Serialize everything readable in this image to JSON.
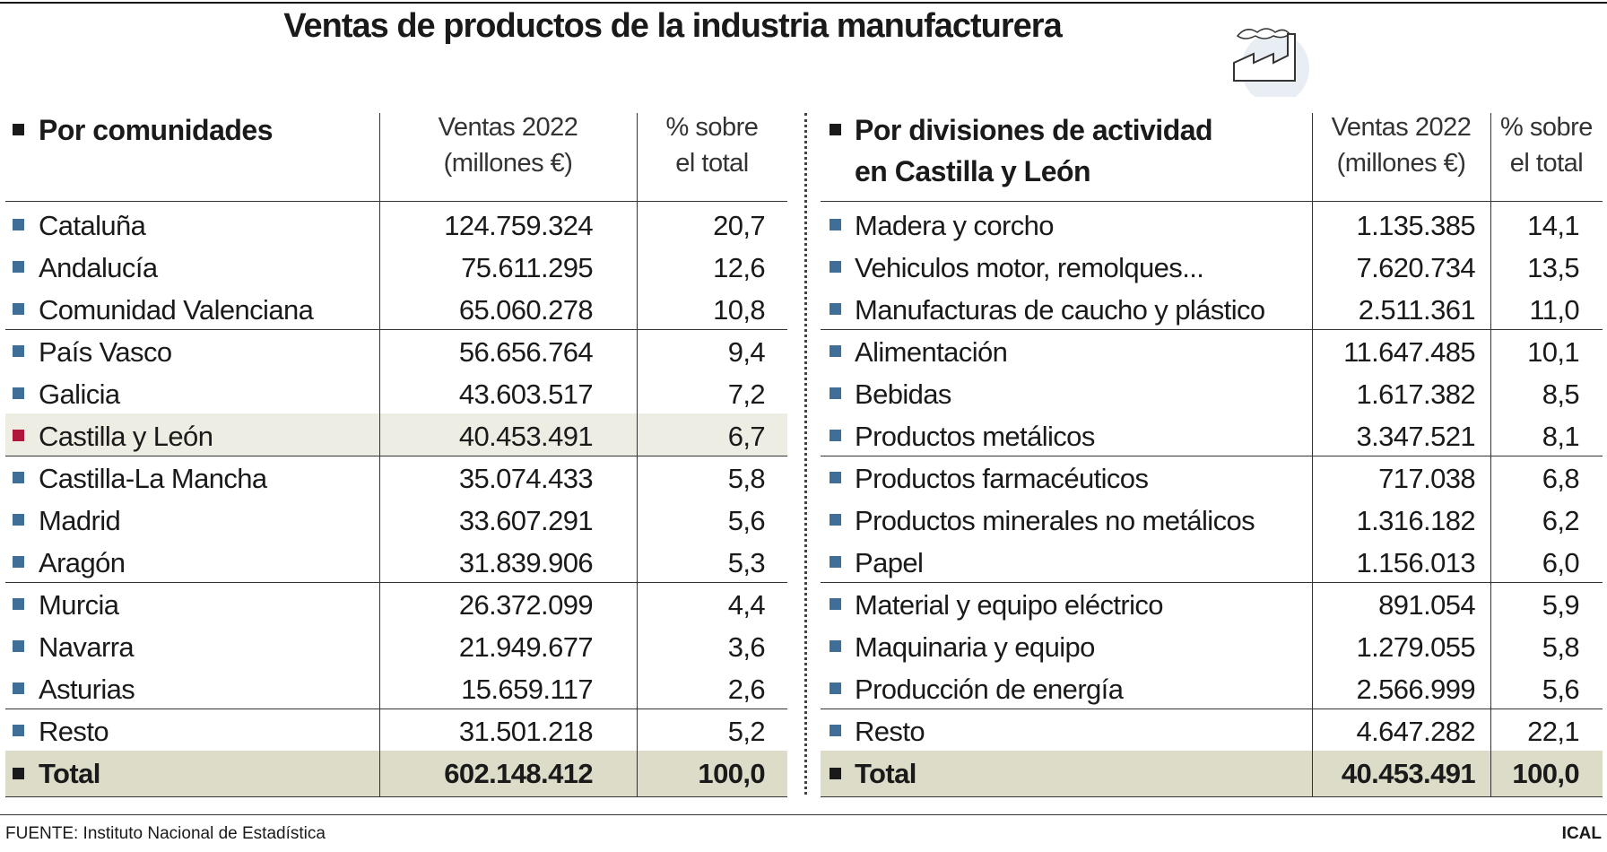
{
  "title": "Ventas de productos de la industria manufacturera",
  "tables": [
    {
      "header": [
        [
          "Por comunidades"
        ],
        [
          "Ventas 2022",
          "(millones €)"
        ],
        [
          "% sobre",
          "el total"
        ]
      ],
      "rows": [
        [
          "Cataluña",
          "124.759.324",
          "20,7"
        ],
        [
          "Andalucía",
          "75.611.295",
          "12,6"
        ],
        [
          "Comunidad Valenciana",
          "65.060.278",
          "10,8"
        ],
        [
          "País Vasco",
          "56.656.764",
          "9,4"
        ],
        [
          "Galicia",
          "43.603.517",
          "7,2"
        ],
        [
          "Castilla y León",
          "40.453.491",
          "6,7"
        ],
        [
          "Castilla-La Mancha",
          "35.074.433",
          "5,8"
        ],
        [
          "Madrid",
          "33.607.291",
          "5,6"
        ],
        [
          "Aragón",
          "31.839.906",
          "5,3"
        ],
        [
          "Murcia",
          "26.372.099",
          "4,4"
        ],
        [
          "Navarra",
          "21.949.677",
          "3,6"
        ],
        [
          "Asturias",
          "15.659.117",
          "2,6"
        ],
        [
          "Resto",
          "31.501.218",
          "5,2"
        ]
      ],
      "total": [
        "Total",
        "602.148.412",
        "100,0"
      ],
      "highlight_row": 5
    },
    {
      "header": [
        [
          "Por divisiones de actividad",
          "en Castilla y León"
        ],
        [
          "Ventas 2022",
          "(millones €)"
        ],
        [
          "% sobre",
          "el total"
        ]
      ],
      "rows": [
        [
          "Madera y corcho",
          "1.135.385",
          "14,1"
        ],
        [
          "Vehiculos motor, remolques...",
          "7.620.734",
          "13,5"
        ],
        [
          "Manufacturas de caucho y plástico",
          "2.511.361",
          "11,0"
        ],
        [
          "Alimentación",
          "11.647.485",
          "10,1"
        ],
        [
          "Bebidas",
          "1.617.382",
          "8,5"
        ],
        [
          "Productos metálicos",
          "3.347.521",
          "8,1"
        ],
        [
          "Productos farmacéuticos",
          "717.038",
          "6,8"
        ],
        [
          "Productos minerales no metálicos",
          "1.316.182",
          "6,2"
        ],
        [
          "Papel",
          "1.156.013",
          "6,0"
        ],
        [
          "Material y equipo eléctrico",
          "891.054",
          "5,9"
        ],
        [
          "Maquinaria y equipo",
          "1.279.055",
          "5,8"
        ],
        [
          "Producción de energía",
          "2.566.999",
          "5,6"
        ],
        [
          "Resto",
          "4.647.282",
          "22,1"
        ]
      ],
      "total": [
        "Total",
        "40.453.491",
        "100,0"
      ]
    }
  ],
  "footer": {
    "source": "FUENTE: Instituto Nacional de Estadística",
    "credit": "ICAL"
  }
}
